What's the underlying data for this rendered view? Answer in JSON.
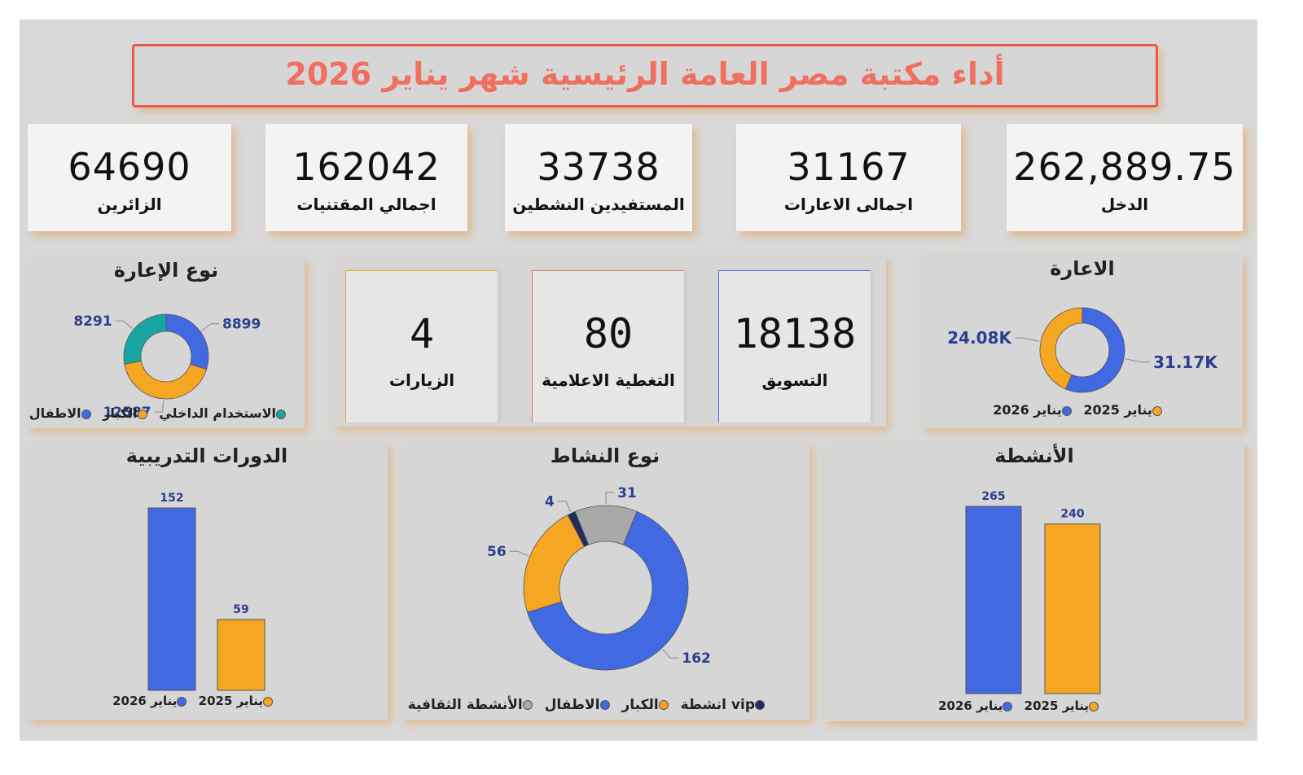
{
  "title": "أداء مكتبة مصر العامة الرئيسية شهر يناير 2026",
  "colors": {
    "title_red": "#f07060",
    "blue": "#4169e1",
    "orange": "#f5a623",
    "teal": "#1aa5a5",
    "gray": "#a9a9a9",
    "navy": "#1f2d5a",
    "label_blue": "#2b3f8f"
  },
  "kpis": [
    {
      "value": "262,889.75",
      "label": "الدخل"
    },
    {
      "value": "31167",
      "label": "اجمالى الاعارات"
    },
    {
      "value": "33738",
      "label": "المستفيدين النشطين"
    },
    {
      "value": "162042",
      "label": "اجمالي المقتنيات"
    },
    {
      "value": "64690",
      "label": "الزائرين"
    }
  ],
  "inner_cards": [
    {
      "value": "18138",
      "label": "التسويق",
      "accent": "#4169e1"
    },
    {
      "value": "80",
      "label": "التغطية الاعلامية",
      "accent": "#f07060"
    },
    {
      "value": "4",
      "label": "الزيارات",
      "accent": "#f5a623"
    }
  ],
  "chart_data": [
    {
      "id": "loan_type",
      "type": "pie",
      "title": "نوع الإعارة",
      "slices": [
        {
          "name": "الاطفال",
          "value": 8899,
          "label": "8899",
          "color": "#4169e1"
        },
        {
          "name": "الكبار",
          "value": 12587,
          "label": "12587",
          "color": "#f5a623"
        },
        {
          "name": "الاستخدام الداخلي",
          "value": 8291,
          "label": "8291",
          "color": "#1aa5a5"
        }
      ],
      "legend": [
        "الاستخدام الداخلي",
        "الكبار",
        "الاطفال"
      ]
    },
    {
      "id": "loans",
      "type": "pie",
      "title": "الاعارة",
      "slices": [
        {
          "name": "يناير 2026",
          "value": 31170,
          "label": "31.17K",
          "color": "#4169e1"
        },
        {
          "name": "يناير 2025",
          "value": 24080,
          "label": "24.08K",
          "color": "#f5a623"
        }
      ],
      "legend": [
        "يناير 2025",
        "يناير 2026"
      ]
    },
    {
      "id": "courses",
      "type": "bar",
      "title": "الدورات التدريبية",
      "categories": [
        "يناير 2026",
        "يناير 2025"
      ],
      "values": [
        152,
        59
      ],
      "colors": [
        "#4169e1",
        "#f5a623"
      ],
      "legend": [
        "يناير 2025",
        "يناير 2026"
      ]
    },
    {
      "id": "activity_type",
      "type": "pie",
      "title": "نوع النشاط",
      "slices": [
        {
          "name": "الأنشطة الثقافية",
          "value": 31,
          "label": "31",
          "color": "#a9a9a9"
        },
        {
          "name": "الاطفال",
          "value": 162,
          "label": "162",
          "color": "#4169e1"
        },
        {
          "name": "الكبار",
          "value": 56,
          "label": "56",
          "color": "#f5a623"
        },
        {
          "name": "vip انشطة",
          "value": 4,
          "label": "4",
          "color": "#1f2d5a"
        }
      ],
      "legend": [
        "vip انشطة",
        "الكبار",
        "الاطفال",
        "الأنشطة الثقافية"
      ]
    },
    {
      "id": "activities",
      "type": "bar",
      "title": "الأنشطة",
      "categories": [
        "يناير 2026",
        "يناير 2025"
      ],
      "values": [
        265,
        240
      ],
      "colors": [
        "#4169e1",
        "#f5a623"
      ],
      "legend": [
        "يناير 2025",
        "يناير 2026"
      ]
    }
  ]
}
